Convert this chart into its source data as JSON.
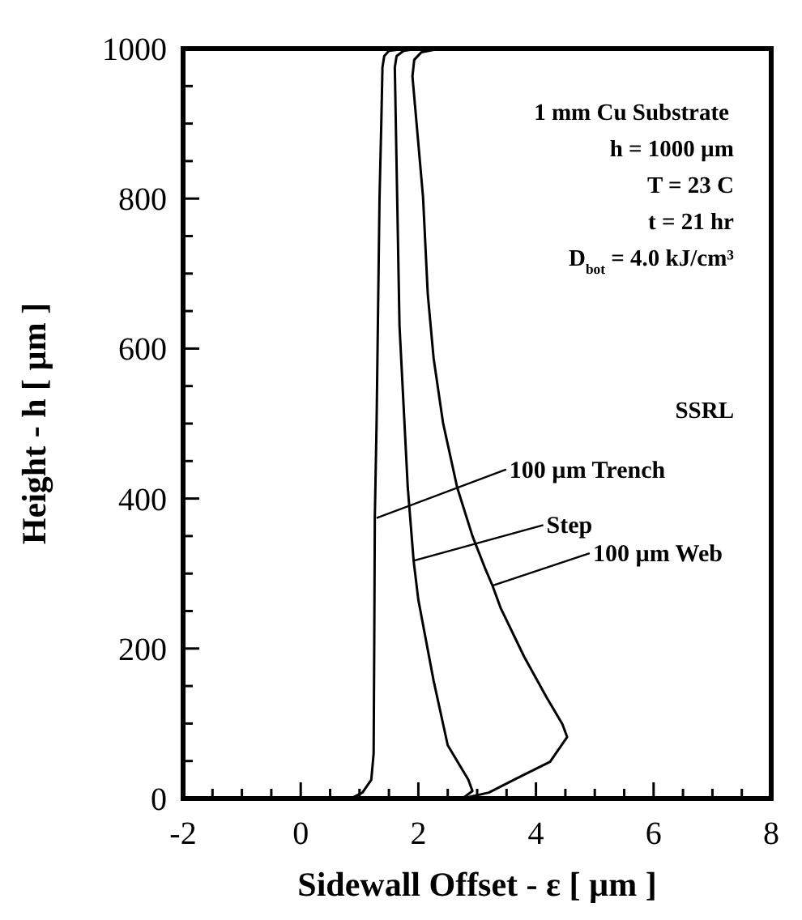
{
  "chart_data": {
    "type": "line",
    "xlabel": "Sidewall Offset - ε  [ µm ]",
    "ylabel": "Height - h  [ µm ]",
    "xlim": [
      -2,
      8
    ],
    "ylim": [
      0,
      1000
    ],
    "xticks": [
      -2,
      {
        "value": -1.5,
        "label": null
      },
      {
        "value": -1,
        "label": null
      },
      {
        "value": -0.5,
        "label": null
      },
      0,
      {
        "value": 0.5,
        "label": null
      },
      {
        "value": 1,
        "label": null
      },
      {
        "value": 1.5,
        "label": null
      },
      2,
      {
        "value": 2.5,
        "label": null
      },
      {
        "value": 3,
        "label": null
      },
      {
        "value": 3.5,
        "label": null
      },
      4,
      {
        "value": 4.5,
        "label": null
      },
      {
        "value": 5,
        "label": null
      },
      {
        "value": 5.5,
        "label": null
      },
      6,
      {
        "value": 6.5,
        "label": null
      },
      {
        "value": 7,
        "label": null
      },
      {
        "value": 7.5,
        "label": null
      },
      8
    ],
    "yticks": [
      0,
      {
        "value": 50,
        "label": null
      },
      {
        "value": 100,
        "label": null
      },
      {
        "value": 150,
        "label": null
      },
      200,
      {
        "value": 250,
        "label": null
      },
      {
        "value": 300,
        "label": null
      },
      {
        "value": 350,
        "label": null
      },
      400,
      {
        "value": 450,
        "label": null
      },
      {
        "value": 500,
        "label": null
      },
      {
        "value": 550,
        "label": null
      },
      600,
      {
        "value": 650,
        "label": null
      },
      {
        "value": 700,
        "label": null
      },
      {
        "value": 750,
        "label": null
      },
      800,
      {
        "value": 850,
        "label": null
      },
      {
        "value": 900,
        "label": null
      },
      {
        "value": 950,
        "label": null
      },
      1000
    ],
    "grid": false,
    "marker": "none",
    "line_style": "solid",
    "series": [
      {
        "color": "#000000",
        "x": [
          0.85,
          1.05,
          1.2,
          1.24,
          1.25,
          1.26,
          1.29,
          1.34,
          1.37,
          1.39,
          1.42,
          1.5,
          1.8,
          2.6
        ],
        "values": [
          0,
          8,
          25,
          60,
          200,
          374,
          500,
          800,
          900,
          975,
          990,
          997,
          1000,
          1000
        ]
      },
      {
        "color": "#000000",
        "x": [
          2.75,
          2.92,
          2.85,
          2.5,
          2.26,
          2.0,
          1.92,
          1.82,
          1.68,
          1.63,
          1.6,
          1.63,
          1.75,
          2.0,
          2.6
        ],
        "values": [
          0,
          10,
          25,
          71,
          157,
          265,
          317,
          415,
          630,
          845,
          975,
          990,
          997,
          1000,
          1000
        ]
      },
      {
        "color": "#000000",
        "x": [
          2.75,
          3.2,
          3.7,
          4.24,
          4.53,
          4.45,
          4.18,
          3.8,
          3.4,
          3.26,
          3.13,
          2.92,
          2.66,
          2.42,
          2.26,
          2.16,
          2.08,
          1.9,
          1.93,
          2.05,
          2.3,
          2.6
        ],
        "values": [
          0,
          8,
          28,
          49,
          82,
          99,
          135,
          189,
          254,
          284,
          308,
          350,
          415,
          501,
          587,
          673,
          802,
          963,
          985,
          995,
          999,
          1000
        ]
      }
    ],
    "annotations": [
      {
        "text": "100 µm Trench",
        "x": 1.29,
        "y": 374
      },
      {
        "text": "Step",
        "x": 1.92,
        "y": 317
      },
      {
        "text": "100 µm Web",
        "x": 3.26,
        "y": 284
      },
      "1 mm Cu Substrate",
      "h = 1000 µm",
      "T = 23 C",
      "t = 21 hr",
      "D$_{bot}$ = 4.0 kJ/cm³",
      "SSRL"
    ]
  }
}
